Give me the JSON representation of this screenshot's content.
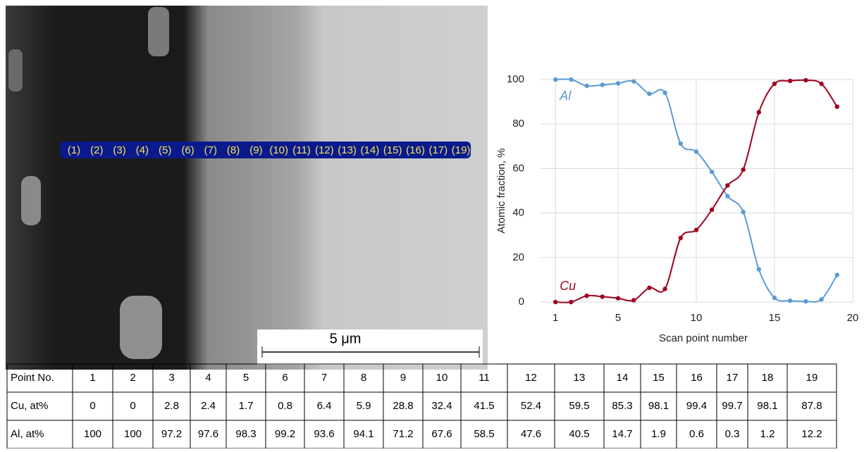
{
  "image": {
    "scale_bar": "5 μm",
    "points": [
      "(1)",
      "(2)",
      "(3)",
      "(4)",
      "(5)",
      "(6)",
      "(7)",
      "(8)",
      "(9)",
      "(10)",
      "(11)",
      "(12)",
      "(13)",
      "(14)",
      "(15)",
      "(16)",
      "(17)",
      "(19)"
    ]
  },
  "chart_data": {
    "type": "line",
    "x_label": "Scan point number",
    "y_label": "Atomic fraction, %",
    "x": [
      1,
      2,
      3,
      4,
      5,
      6,
      7,
      8,
      9,
      10,
      11,
      12,
      13,
      14,
      15,
      16,
      17,
      18,
      19
    ],
    "series": [
      {
        "name": "Al",
        "color": "#5b9bd5",
        "values": [
          100,
          100,
          97.2,
          97.6,
          98.3,
          99.2,
          93.6,
          94.1,
          71.2,
          67.6,
          58.5,
          47.6,
          40.5,
          14.7,
          1.9,
          0.6,
          0.3,
          1.2,
          12.2
        ]
      },
      {
        "name": "Cu",
        "color": "#a0001e",
        "values": [
          0,
          0,
          2.8,
          2.4,
          1.7,
          0.8,
          6.4,
          5.9,
          28.8,
          32.4,
          41.5,
          52.4,
          59.5,
          85.3,
          98.1,
          99.4,
          99.7,
          98.1,
          87.8
        ]
      }
    ],
    "xlim": [
      0,
      20
    ],
    "xticks": [
      1,
      5,
      10,
      15,
      20
    ],
    "ylim": [
      0,
      100
    ],
    "yticks": [
      0,
      20,
      40,
      60,
      80,
      100
    ],
    "grid": true
  },
  "table": {
    "header": [
      "Point No.",
      "1",
      "2",
      "3",
      "4",
      "5",
      "6",
      "7",
      "8",
      "9",
      "10",
      "11",
      "12",
      "13",
      "14",
      "15",
      "16",
      "17",
      "18",
      "19"
    ],
    "rows": [
      [
        "Cu, at%",
        0,
        0,
        2.8,
        2.4,
        1.7,
        0.8,
        6.4,
        5.9,
        28.8,
        32.4,
        41.5,
        52.4,
        59.5,
        85.3,
        98.1,
        99.4,
        99.7,
        98.1,
        87.8
      ],
      [
        "Al, at%",
        100,
        100,
        97.2,
        97.6,
        98.3,
        99.2,
        93.6,
        94.1,
        71.2,
        67.6,
        58.5,
        47.6,
        40.5,
        14.7,
        1.9,
        0.6,
        0.3,
        1.2,
        12.2
      ]
    ]
  }
}
